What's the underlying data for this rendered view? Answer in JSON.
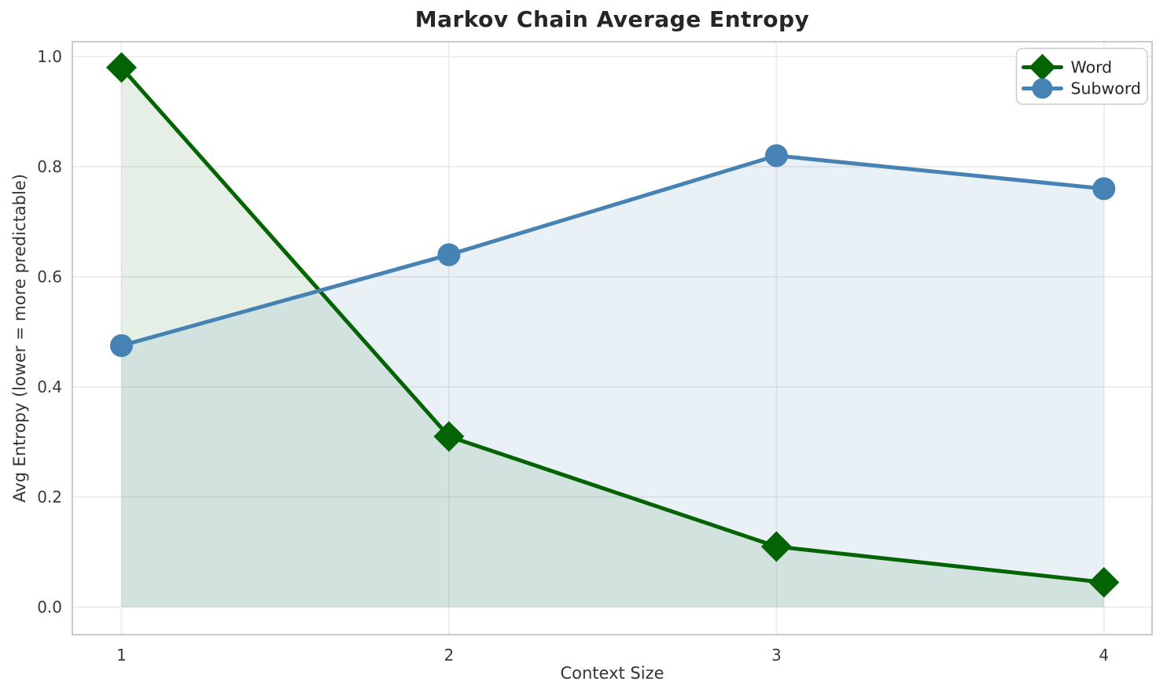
{
  "chart_data": {
    "type": "line",
    "title": "Markov Chain Average Entropy",
    "xlabel": "Context Size",
    "ylabel": "Avg Entropy (lower = more predictable)",
    "x": [
      1,
      2,
      3,
      4
    ],
    "series": [
      {
        "name": "Word",
        "values": [
          0.98,
          0.31,
          0.11,
          0.045
        ],
        "color": "#046404",
        "fill": "rgba(0,100,0,0.10)",
        "marker": "diamond"
      },
      {
        "name": "Subword",
        "values": [
          0.475,
          0.64,
          0.82,
          0.76
        ],
        "color": "#4682b4",
        "fill": "rgba(70,130,180,0.12)",
        "marker": "circle"
      }
    ],
    "xticks": [
      1,
      2,
      3,
      4
    ],
    "xtick_labels": [
      "1",
      "2",
      "3",
      "4"
    ],
    "yticks": [
      0.0,
      0.2,
      0.4,
      0.6,
      0.8,
      1.0
    ],
    "ytick_labels": [
      "0.0",
      "0.2",
      "0.4",
      "0.6",
      "0.8",
      "1.0"
    ],
    "xlim": [
      0.85,
      4.147
    ],
    "ylim": [
      -0.05,
      1.027
    ],
    "grid": true,
    "fill_to_zero": true,
    "legend_position": "upper right"
  },
  "style": {
    "grid_color": "#ececec",
    "spine_color": "#cbcbcb",
    "tick_text_color": "#3a3a3a",
    "legend_text_color": "#262626",
    "legend_border_color": "#cccccc",
    "plot_bg": "#ffffff"
  }
}
